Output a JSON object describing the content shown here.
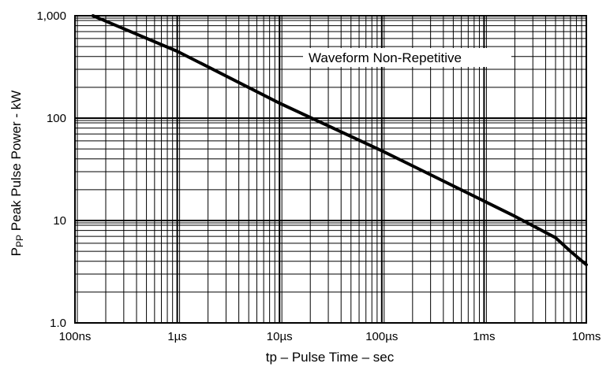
{
  "chart_data": {
    "type": "line",
    "title": "",
    "xlabel": "tp – Pulse Time – sec",
    "ylabel": {
      "main": "P",
      "subscript": "PP",
      "rest": " Peak Pulse Power - kW"
    },
    "x_scale": "log",
    "y_scale": "log",
    "xlim_seconds": [
      1e-07,
      0.01
    ],
    "ylim": [
      1,
      1000
    ],
    "x_ticks": [
      {
        "value": 1e-07,
        "label": "100ns"
      },
      {
        "value": 1e-06,
        "label": "1µs"
      },
      {
        "value": 1e-05,
        "label": "10µs"
      },
      {
        "value": 0.0001,
        "label": "100µs"
      },
      {
        "value": 0.001,
        "label": "1ms"
      },
      {
        "value": 0.01,
        "label": "10ms"
      }
    ],
    "y_ticks": [
      {
        "value": 1,
        "label": "1.0"
      },
      {
        "value": 10,
        "label": "10"
      },
      {
        "value": 100,
        "label": "100"
      },
      {
        "value": 1000,
        "label": "1,000"
      }
    ],
    "grid": true,
    "annotation": "Waveform Non-Repetitive",
    "series": [
      {
        "x_seconds": [
          1.5e-07,
          1e-06,
          1e-05,
          0.0001,
          0.001,
          0.002,
          0.005,
          0.007,
          0.01
        ],
        "y": [
          1000,
          450,
          140,
          48,
          15.5,
          11,
          6.8,
          5,
          3.7
        ]
      }
    ]
  },
  "colors": {
    "grid": "#000000",
    "line": "#000000",
    "background": "#ffffff"
  }
}
